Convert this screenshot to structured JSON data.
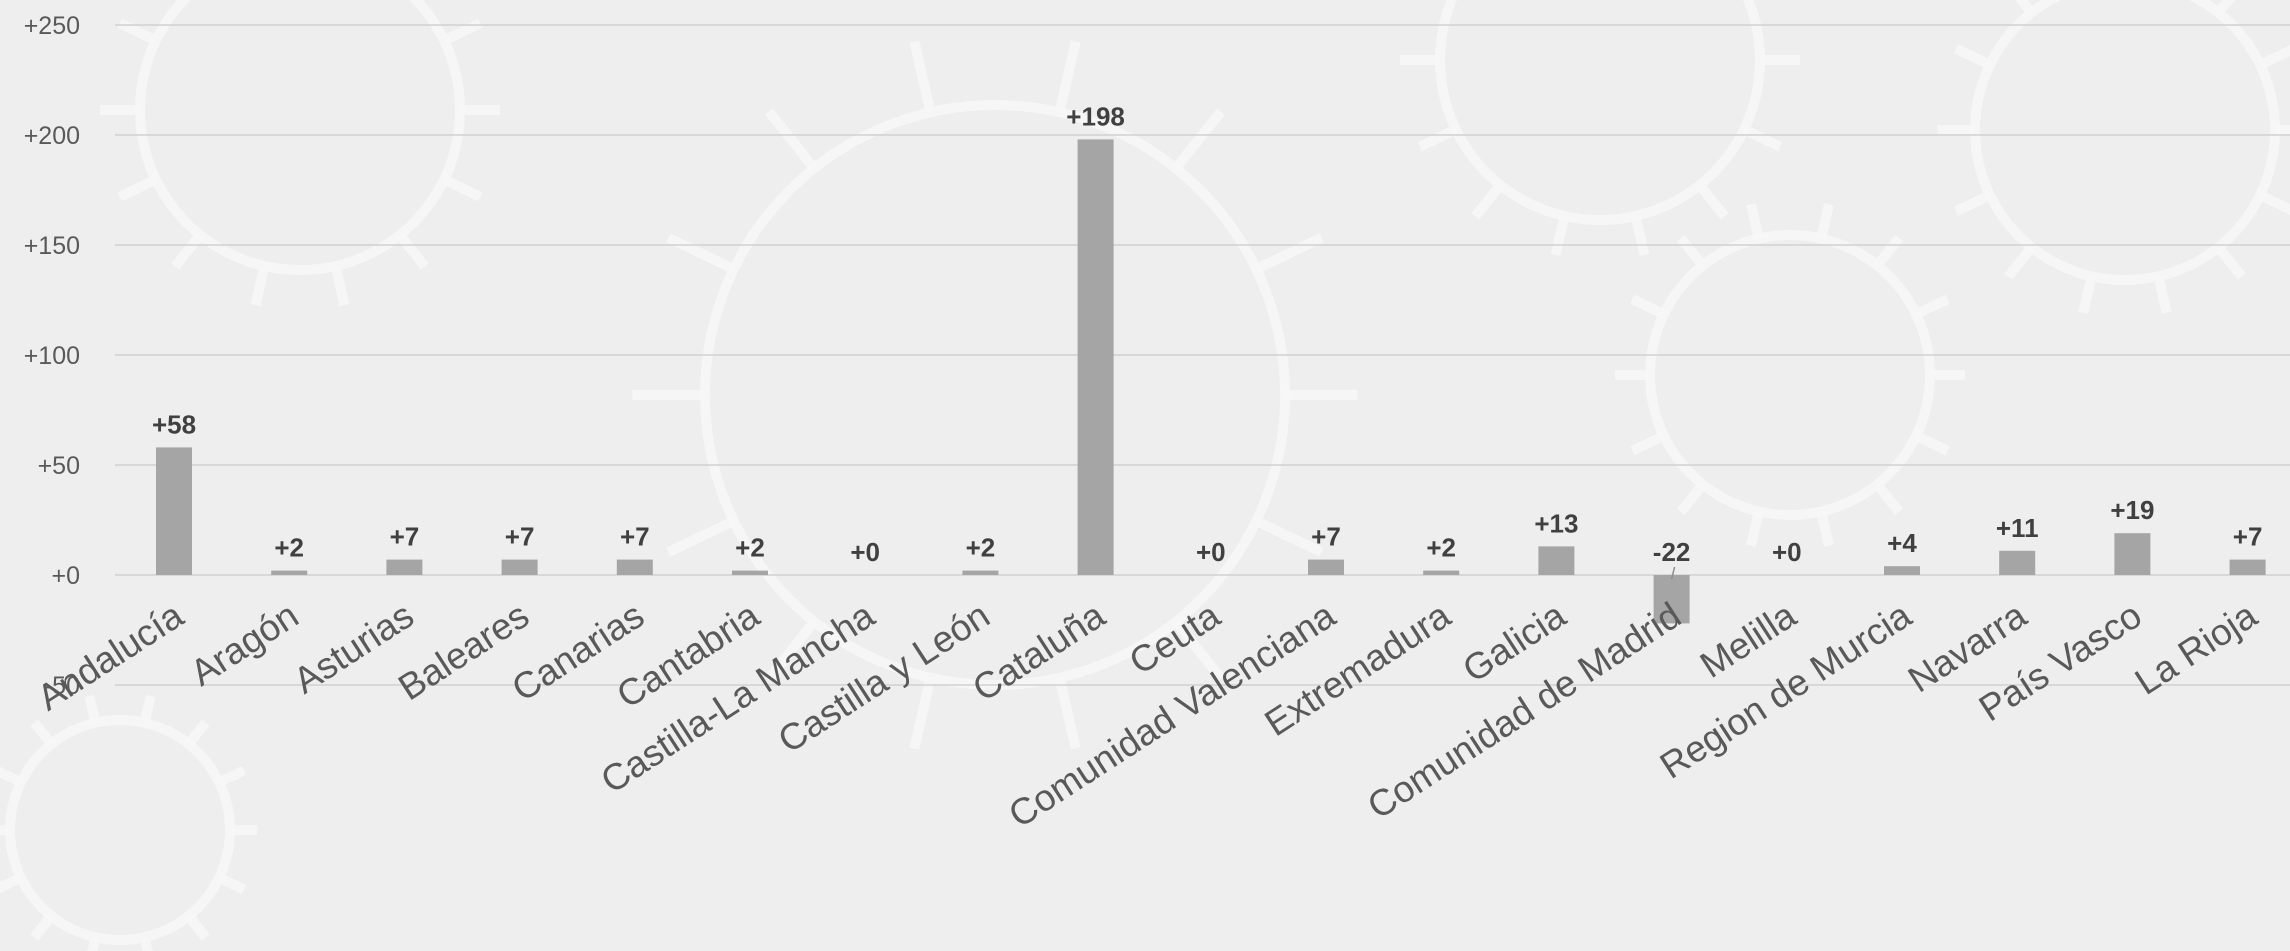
{
  "chart_data": {
    "type": "bar",
    "categories": [
      "Andalucía",
      "Aragón",
      "Asturias",
      "Baleares",
      "Canarias",
      "Cantabria",
      "Castilla-La Mancha",
      "Castilla y León",
      "Cataluña",
      "Ceuta",
      "Comunidad Valenciana",
      "Extremadura",
      "Galicia",
      "Comunidad de Madrid",
      "Melilla",
      "Region de Murcia",
      "Navarra",
      "País Vasco",
      "La Rioja"
    ],
    "values": [
      58,
      2,
      7,
      7,
      7,
      2,
      0,
      2,
      198,
      0,
      7,
      2,
      13,
      -22,
      0,
      4,
      11,
      19,
      7
    ],
    "data_labels": [
      "+58",
      "+2",
      "+7",
      "+7",
      "+7",
      "+2",
      "+0",
      "+2",
      "+198",
      "+0",
      "+7",
      "+2",
      "+13",
      "-22",
      "+0",
      "+4",
      "+11",
      "+19",
      "+7"
    ],
    "yticks": [
      -50,
      0,
      50,
      100,
      150,
      200,
      250
    ],
    "ytick_labels": [
      "-50",
      "+0",
      "+50",
      "+100",
      "+150",
      "+200",
      "+250"
    ],
    "ylim": [
      -50,
      250
    ],
    "title": "",
    "xlabel": "",
    "ylabel": "",
    "grid": true,
    "bar_color": "#a5a5a5",
    "background_color": "#eeeeee",
    "gridline_color": "#d0d0d0"
  }
}
